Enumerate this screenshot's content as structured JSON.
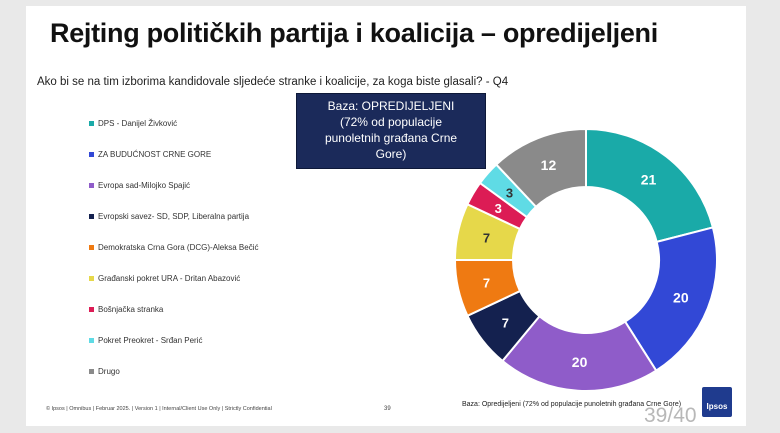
{
  "slide": {
    "title": "Rejting političkih partija i koalicija – opredijeljeni",
    "question": "Ako bi se na tim izborima kandidovale sljedeće stranke i koalicije, za koga biste glasali? - Q4",
    "base_box": [
      "Baza: OPREDIJELJENI",
      "(72% od populacije",
      "punoletnih građana Crne",
      "Gore)"
    ],
    "footer": "© Ipsos | Omnibus | Februar 2025. | Version 1 | Internal/Client Use Only | Strictly Confidential",
    "page_small": "39",
    "base_note": "Baza: Opredijeljeni (72% od populacije punoletnih građana Crne Gore)",
    "logo": "Ipsos",
    "page_big": "39/40"
  },
  "chart_data": {
    "type": "pie",
    "donut": true,
    "legend_position": "left",
    "series": [
      {
        "name": "DPS - Danijel Živković",
        "value": 21,
        "color": "#1aaaa8"
      },
      {
        "name": "ZA BUDUĆNOST CRNE GORE",
        "value": 20,
        "color": "#3248d6"
      },
      {
        "name": "Evropa sad-Milojko Spajić",
        "value": 20,
        "color": "#8f5cc9"
      },
      {
        "name": "Evropski savez- SD, SDP, Liberalna partija",
        "value": 7,
        "color": "#14214f"
      },
      {
        "name": "Demokratska Crna Gora (DCG)-Aleksa Bečić",
        "value": 7,
        "color": "#ef7a12"
      },
      {
        "name": "Građanski pokret URA - Dritan Abazović",
        "value": 7,
        "color": "#e6d84a"
      },
      {
        "name": "Bošnjačka stranka",
        "value": 3,
        "color": "#dc1c55"
      },
      {
        "name": "Pokret Preokret - Srđan Perić",
        "value": 3,
        "color": "#5fdbe5"
      },
      {
        "name": "Drugo",
        "value": 12,
        "color": "#8a8a8a"
      }
    ]
  }
}
